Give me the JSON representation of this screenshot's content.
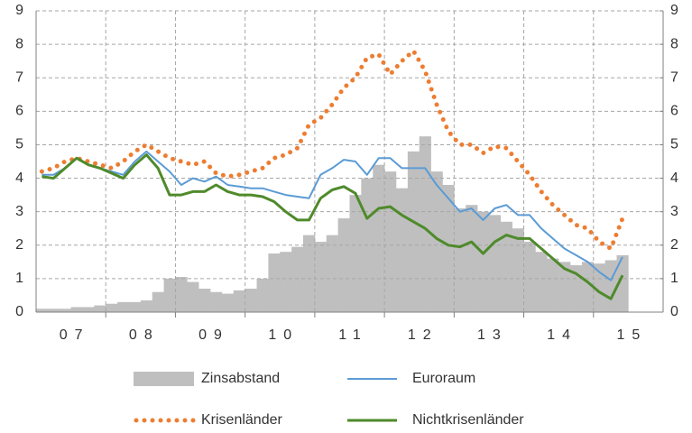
{
  "chart_data": {
    "type": "line",
    "x": [
      0,
      2,
      4,
      6,
      8,
      10,
      12,
      14,
      16,
      18,
      20,
      22,
      24,
      26,
      28,
      30,
      32,
      34,
      36,
      38,
      40,
      42,
      44,
      46,
      48,
      50,
      52,
      54,
      56,
      58,
      60,
      62,
      64,
      66,
      68,
      70,
      72,
      74,
      76,
      78,
      80,
      82,
      84,
      86,
      88,
      90,
      92,
      94,
      96,
      98,
      100
    ],
    "xlim": [
      0,
      108
    ],
    "xticks": [
      {
        "value": 6,
        "label": "07"
      },
      {
        "value": 18,
        "label": "08"
      },
      {
        "value": 30,
        "label": "09"
      },
      {
        "value": 42,
        "label": "10"
      },
      {
        "value": 54,
        "label": "11"
      },
      {
        "value": 66,
        "label": "12"
      },
      {
        "value": 78,
        "label": "13"
      },
      {
        "value": 90,
        "label": "14"
      },
      {
        "value": 102,
        "label": "15"
      }
    ],
    "xgrid": [
      12,
      24,
      36,
      48,
      60,
      72,
      84,
      96
    ],
    "ylim": [
      0,
      9
    ],
    "yticks": [
      0,
      1,
      2,
      3,
      4,
      5,
      6,
      7,
      8,
      9
    ],
    "y2lim": [
      0,
      9
    ],
    "y2ticks": [
      0,
      1,
      2,
      3,
      4,
      5,
      6,
      7,
      8,
      9
    ],
    "grid": true,
    "legend": "bottom",
    "series": [
      {
        "name": "Zinsabstand",
        "color": "#bfbfbf",
        "style": "bar",
        "values": [
          0.1,
          0.1,
          0.1,
          0.15,
          0.15,
          0.2,
          0.25,
          0.3,
          0.3,
          0.35,
          0.6,
          1.0,
          1.05,
          0.9,
          0.7,
          0.6,
          0.55,
          0.65,
          0.7,
          1.0,
          1.75,
          1.8,
          1.95,
          2.3,
          2.1,
          2.3,
          2.8,
          3.5,
          4.0,
          4.4,
          4.2,
          3.7,
          4.8,
          5.25,
          4.2,
          3.8,
          3.1,
          3.2,
          3.0,
          2.9,
          2.7,
          2.5,
          2.1,
          1.8,
          1.6,
          1.5,
          1.4,
          1.5,
          1.45,
          1.55,
          1.7
        ]
      },
      {
        "name": "Euroraum",
        "color": "#5b9bd5",
        "style": "line",
        "values": [
          4.1,
          4.1,
          4.3,
          4.6,
          4.4,
          4.3,
          4.2,
          4.1,
          4.5,
          4.8,
          4.5,
          4.2,
          3.8,
          4.0,
          3.9,
          4.05,
          3.8,
          3.75,
          3.7,
          3.7,
          3.6,
          3.5,
          3.45,
          3.4,
          4.1,
          4.3,
          4.55,
          4.5,
          4.1,
          4.6,
          4.6,
          4.3,
          4.3,
          4.3,
          3.8,
          3.4,
          3.0,
          3.1,
          2.75,
          3.1,
          3.2,
          2.9,
          2.9,
          2.5,
          2.2,
          1.9,
          1.7,
          1.5,
          1.2,
          0.95,
          1.65
        ]
      },
      {
        "name": "Krisenländer",
        "color": "#ed7d31",
        "style": "dotted",
        "values": [
          4.2,
          4.3,
          4.5,
          4.6,
          4.5,
          4.4,
          4.3,
          4.5,
          4.8,
          5.0,
          4.8,
          4.6,
          4.5,
          4.4,
          4.5,
          4.15,
          4.05,
          4.1,
          4.2,
          4.3,
          4.6,
          4.7,
          4.9,
          5.6,
          5.8,
          6.2,
          6.7,
          7.0,
          7.6,
          7.7,
          7.1,
          7.5,
          7.8,
          7.2,
          6.2,
          5.4,
          5.0,
          5.0,
          4.75,
          4.95,
          4.9,
          4.5,
          4.1,
          3.6,
          3.2,
          2.9,
          2.6,
          2.5,
          2.1,
          1.9,
          2.8
        ]
      },
      {
        "name": "Nichtkrisenländer",
        "color": "#4f8a2b",
        "style": "line",
        "values": [
          4.05,
          4.0,
          4.3,
          4.6,
          4.4,
          4.3,
          4.15,
          4.0,
          4.4,
          4.7,
          4.3,
          3.5,
          3.5,
          3.6,
          3.6,
          3.8,
          3.6,
          3.5,
          3.5,
          3.45,
          3.3,
          3.0,
          2.75,
          2.75,
          3.4,
          3.65,
          3.75,
          3.55,
          2.8,
          3.1,
          3.15,
          2.9,
          2.7,
          2.5,
          2.2,
          2.0,
          1.95,
          2.1,
          1.75,
          2.1,
          2.3,
          2.2,
          2.2,
          1.9,
          1.6,
          1.3,
          1.15,
          0.9,
          0.6,
          0.4,
          1.1
        ]
      }
    ]
  }
}
